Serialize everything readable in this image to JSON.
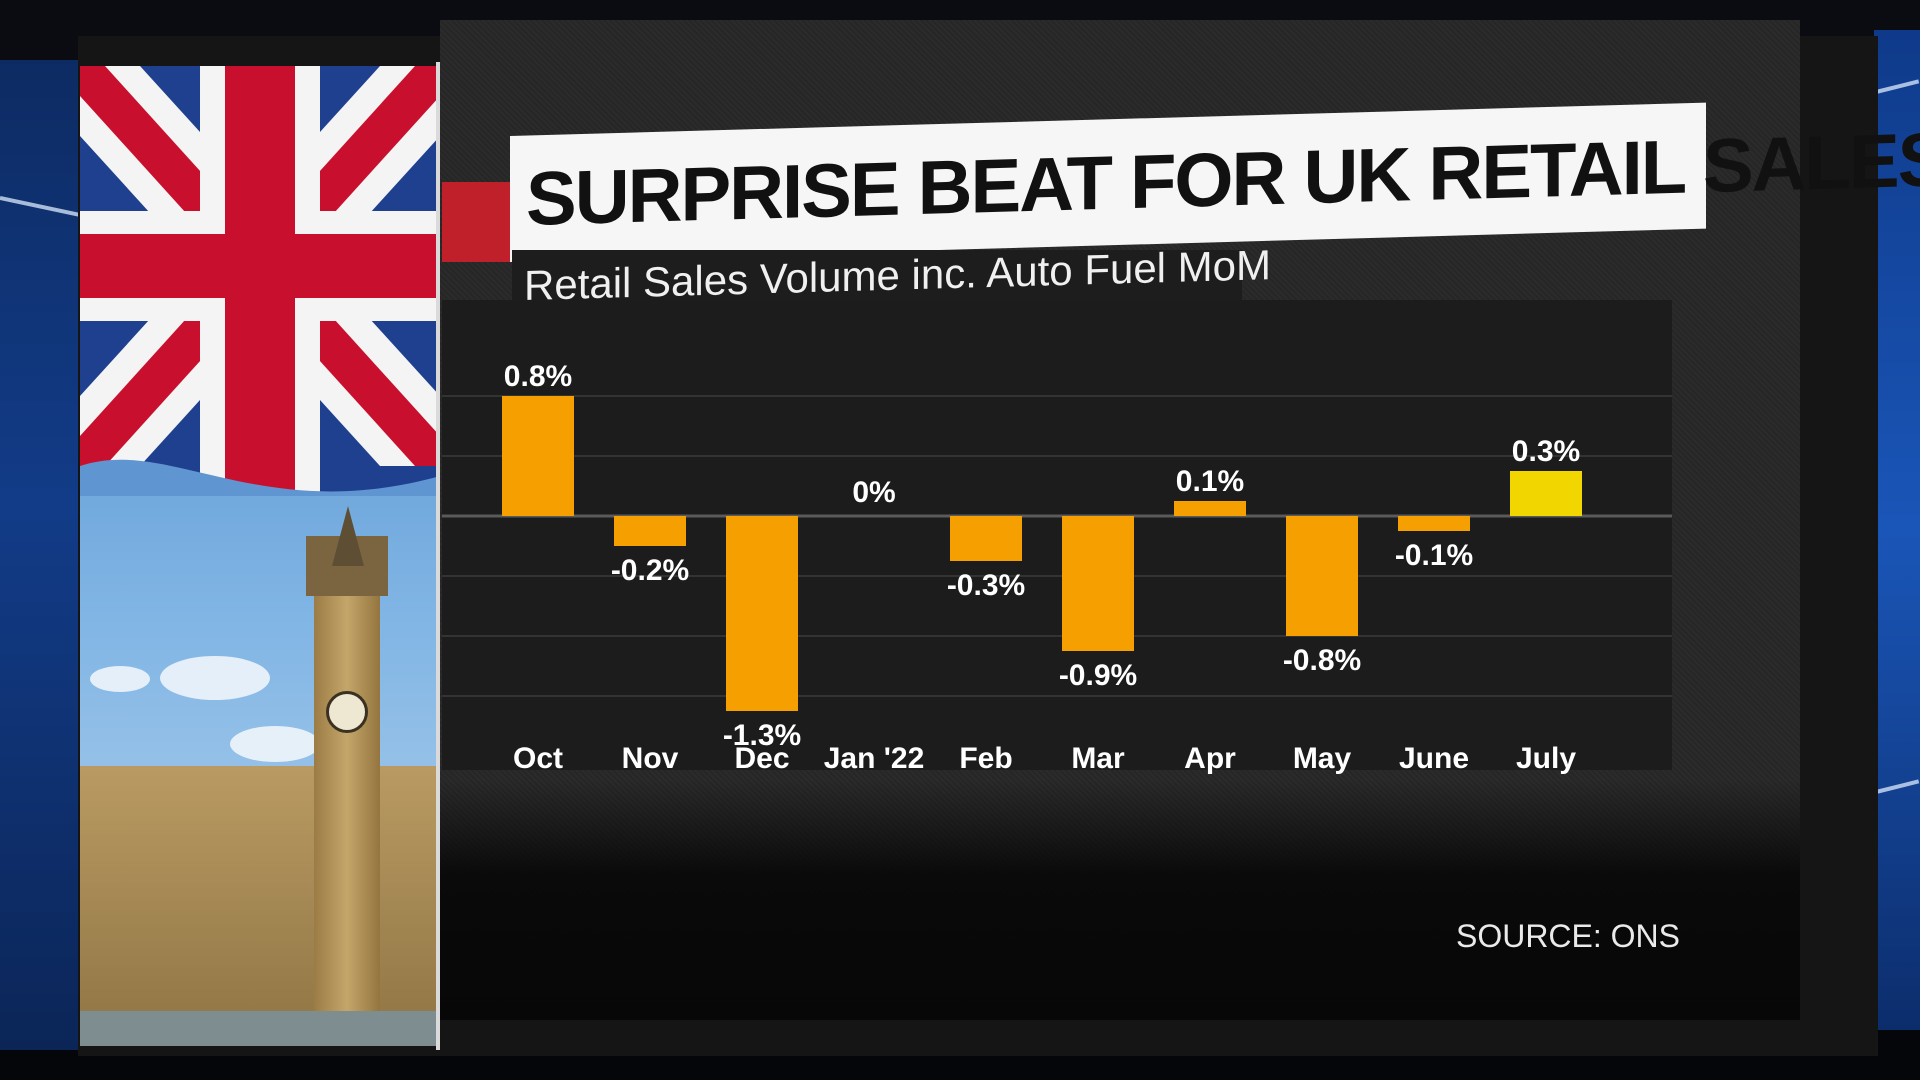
{
  "title": "SURPRISE BEAT FOR UK RETAIL SALES",
  "subtitle": "Retail Sales Volume inc. Auto Fuel MoM",
  "source": "SOURCE: ONS",
  "colors": {
    "bar": "#f5a000",
    "bar_highlight": "#f2d600",
    "background": "#1b1b1b",
    "title_accent": "#c0202a",
    "label": "#ffffff"
  },
  "chart_data": {
    "type": "bar",
    "categories": [
      "Oct",
      "Nov",
      "Dec",
      "Jan '22",
      "Feb",
      "Mar",
      "Apr",
      "May",
      "June",
      "July"
    ],
    "values": [
      0.8,
      -0.2,
      -1.3,
      0,
      -0.3,
      -0.9,
      0.1,
      -0.8,
      -0.1,
      0.3
    ],
    "data_labels": [
      "0.8%",
      "-0.2%",
      "-1.3%",
      "0%",
      "-0.3%",
      "-0.9%",
      "0.1%",
      "-0.8%",
      "-0.1%",
      "0.3%"
    ],
    "highlighted_category": "July",
    "title": "SURPRISE BEAT FOR UK RETAIL SALES",
    "subtitle": "Retail Sales Volume inc. Auto Fuel MoM",
    "ylim": [
      -1.3,
      1.0
    ],
    "grid": true,
    "legend": "none"
  }
}
